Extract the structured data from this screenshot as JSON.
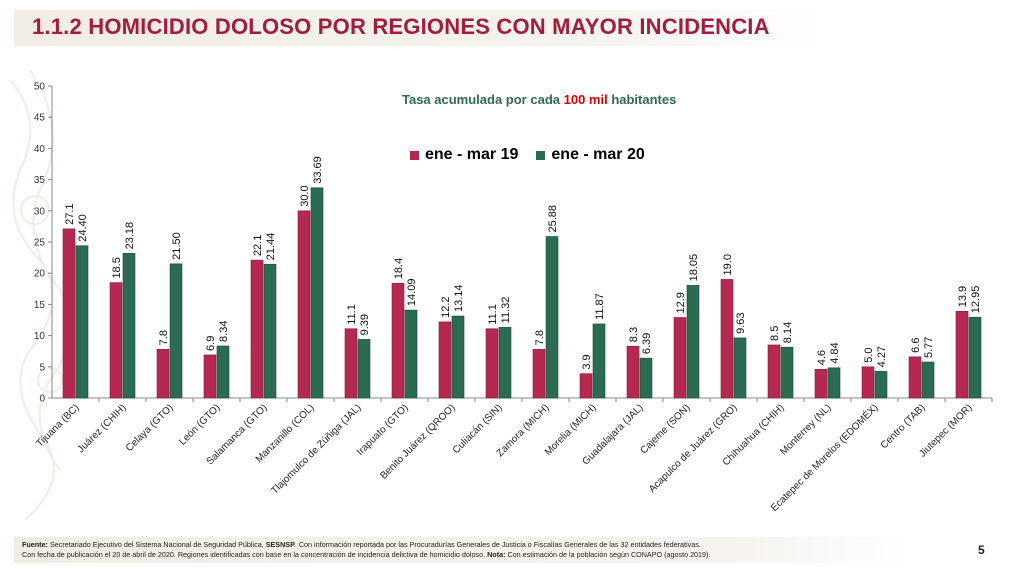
{
  "slide": {
    "title": "1.1.2 HOMICIDIO DOLOSO POR REGIONES CON MAYOR INCIDENCIA",
    "page_number": "5"
  },
  "subtitle": {
    "prefix": "Tasa acumulada por cada ",
    "highlight": "100 mil",
    "suffix": " habitantes"
  },
  "footer": {
    "line1_label": "Fuente:",
    "line1_text_a": " Secretariado Ejecutivo del Sistema Nacional de Seguridad Pública, ",
    "line1_bold": "SESNSP",
    "line1_text_b": ". Con información reportada por las Procuradurías Generales de Justicia o Fiscalías Generales de las 32 entidades federativas.",
    "line2_text_a": "Con fecha de publicación el 20 de abril de 2020. Regiones identificadas con base en la concentración de incidencia delictiva de homicidio doloso. ",
    "line2_label": "Nota:",
    "line2_text_b": " Con estimación de la población según CONAPO (agosto 2019)."
  },
  "chart_data": {
    "type": "bar",
    "ylim": [
      0,
      50
    ],
    "yticks": [
      0,
      5,
      10,
      15,
      20,
      25,
      30,
      35,
      40,
      45,
      50
    ],
    "grid": false,
    "legend_position": "top",
    "categories": [
      "Tijuana (BC)",
      "Juárez (CHIH)",
      "Celaya (GTO)",
      "León (GTO)",
      "Salamanca (GTO)",
      "Manzanillo (COL)",
      "Tlajomulco de Zúñiga (JAL)",
      "Irapuato (GTO)",
      "Benito Juárez (QROO)",
      "Culiacán (SIN)",
      "Zamora (MICH)",
      "Morelia (MICH)",
      "Guadalajara (JAL)",
      "Cajeme (SON)",
      "Acapulco de Juárez (GRO)",
      "Chihuahua (CHIH)",
      "Monterrey (NL)",
      "Ecatepec de Morelos (EDOMÉX)",
      "Centro (TAB)",
      "Jiutepec (MOR)"
    ],
    "series": [
      {
        "name": "ene - mar 19",
        "color": "#b5284f",
        "values": [
          27.1,
          18.5,
          7.8,
          6.9,
          22.1,
          30.0,
          11.1,
          18.4,
          12.2,
          11.1,
          7.8,
          3.9,
          8.3,
          12.9,
          19.0,
          8.5,
          4.6,
          5.0,
          6.6,
          13.9
        ],
        "labels": [
          "27.1",
          "18.5",
          "7.8",
          "6.9",
          "22.1",
          "30.0",
          "11.1",
          "18.4",
          "12.2",
          "11.1",
          "7.8",
          "3.9",
          "8.3",
          "12.9",
          "19.0",
          "8.5",
          "4.6",
          "5.0",
          "6.6",
          "13.9"
        ]
      },
      {
        "name": "ene - mar 20",
        "color": "#2b6b52",
        "values": [
          24.4,
          23.18,
          21.5,
          8.34,
          21.44,
          33.69,
          9.39,
          14.09,
          13.14,
          11.32,
          25.88,
          11.87,
          6.39,
          18.05,
          9.63,
          8.14,
          4.84,
          4.27,
          5.77,
          12.95
        ],
        "labels": [
          "24.40",
          "23.18",
          "21.50",
          "8.34",
          "21.44",
          "33.69",
          "9.39",
          "14.09",
          "13.14",
          "11.32",
          "25.88",
          "11.87",
          "6.39",
          "18.05",
          "9.63",
          "8.14",
          "4.84",
          "4.27",
          "5.77",
          "12.95"
        ]
      }
    ]
  }
}
